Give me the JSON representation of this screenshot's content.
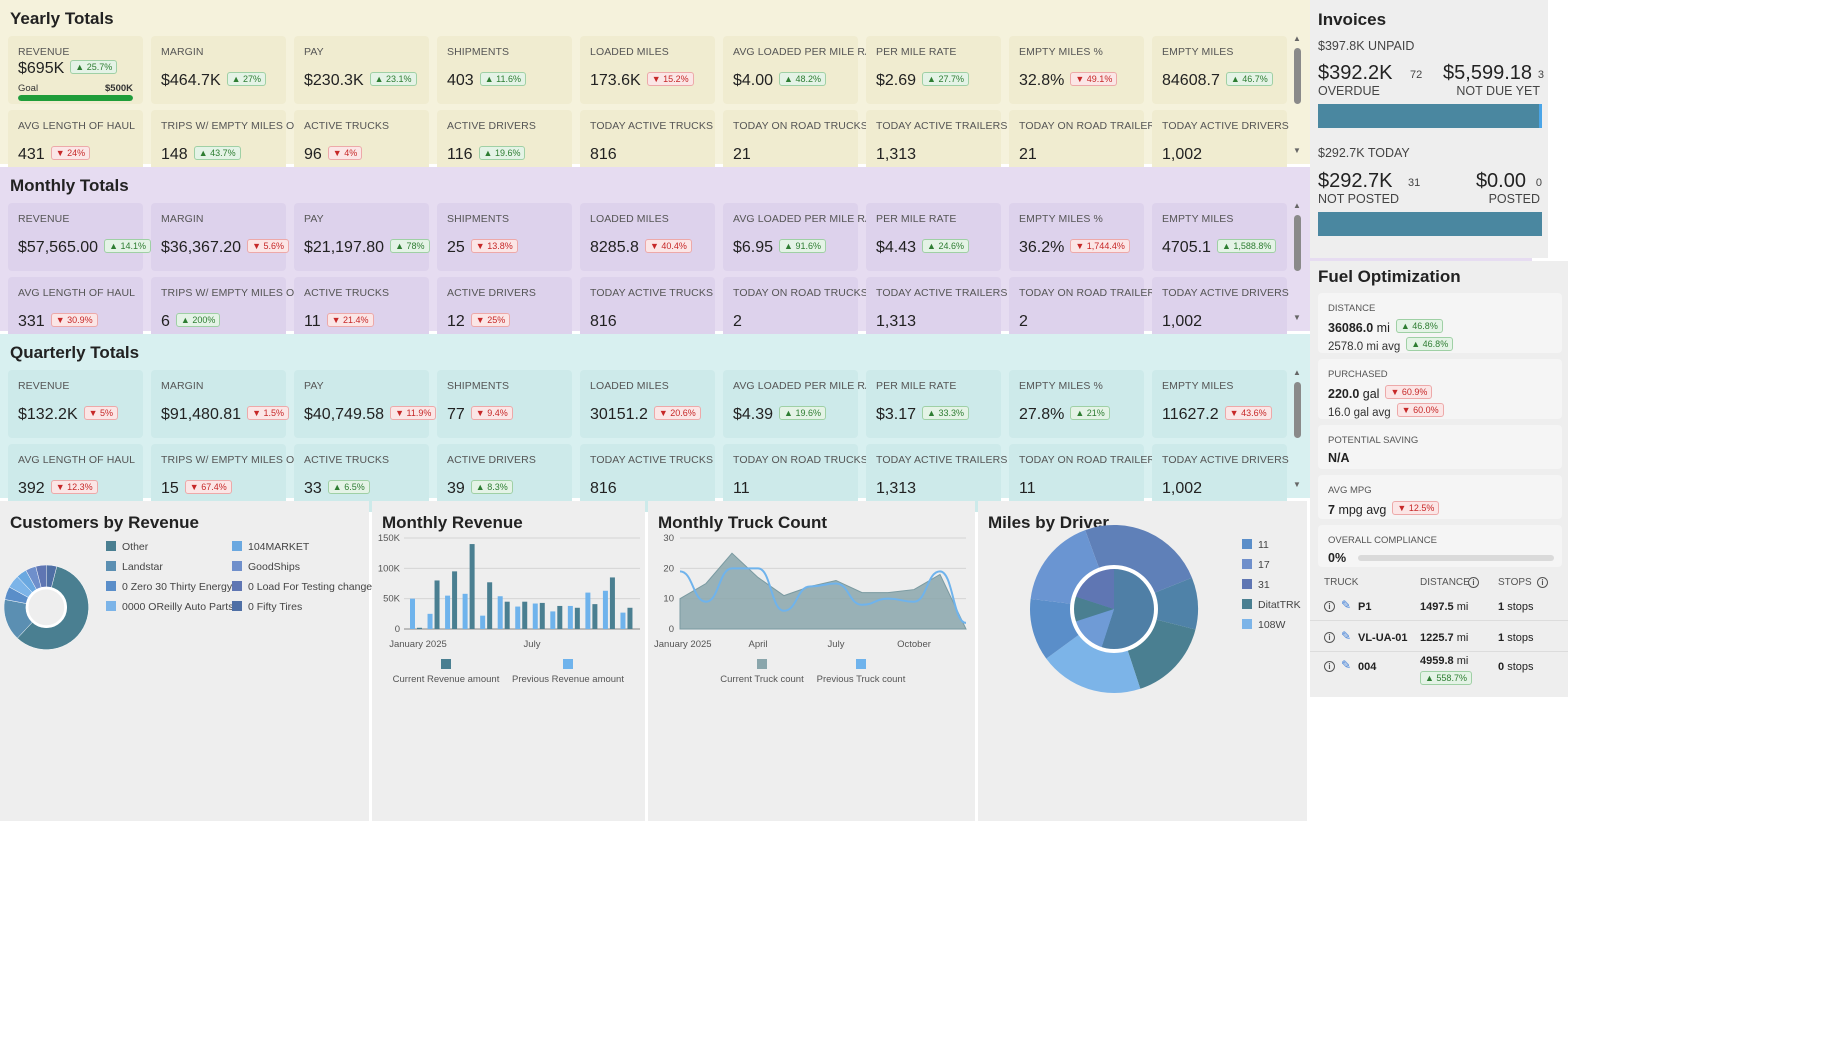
{
  "yearly": {
    "title": "Yearly Totals",
    "bg": "#f5f2dc",
    "card_bg": "#f0ecd0",
    "row1": [
      {
        "label": "REVENUE",
        "value": "$695K",
        "badge": "25.7%",
        "dir": "up"
      },
      {
        "label": "MARGIN",
        "value": "$464.7K",
        "badge": "27%",
        "dir": "up"
      },
      {
        "label": "PAY",
        "value": "$230.3K",
        "badge": "23.1%",
        "dir": "up"
      },
      {
        "label": "SHIPMENTS",
        "value": "403",
        "badge": "11.6%",
        "dir": "up"
      },
      {
        "label": "LOADED MILES",
        "value": "173.6K",
        "badge": "15.2%",
        "dir": "down"
      },
      {
        "label": "AVG LOADED PER MILE RATE",
        "value": "$4.00",
        "badge": "48.2%",
        "dir": "up"
      },
      {
        "label": "PER MILE RATE",
        "value": "$2.69",
        "badge": "27.7%",
        "dir": "up"
      },
      {
        "label": "EMPTY MILES %",
        "value": "32.8%",
        "badge": "49.1%",
        "dir": "down"
      },
      {
        "label": "EMPTY MILES",
        "value": "84608.7",
        "badge": "46.7%",
        "dir": "up"
      }
    ],
    "goal": {
      "label": "Goal",
      "amount": "$500K",
      "progress": 1.0
    },
    "row2": [
      {
        "label": "AVG LENGTH OF HAUL",
        "value": "431",
        "badge": "24%",
        "dir": "down"
      },
      {
        "label": "TRIPS W/ EMPTY MILES OVER",
        "value": "148",
        "badge": "43.7%",
        "dir": "up"
      },
      {
        "label": "ACTIVE TRUCKS",
        "value": "96",
        "badge": "4%",
        "dir": "down"
      },
      {
        "label": "ACTIVE DRIVERS",
        "value": "116",
        "badge": "19.6%",
        "dir": "up"
      },
      {
        "label": "TODAY ACTIVE TRUCKS",
        "value": "816",
        "badge": "",
        "dir": ""
      },
      {
        "label": "TODAY ON ROAD TRUCKS",
        "value": "21",
        "badge": "",
        "dir": ""
      },
      {
        "label": "TODAY ACTIVE TRAILERS",
        "value": "1,313",
        "badge": "",
        "dir": ""
      },
      {
        "label": "TODAY ON ROAD TRAILERS",
        "value": "21",
        "badge": "",
        "dir": ""
      },
      {
        "label": "TODAY ACTIVE DRIVERS",
        "value": "1,002",
        "badge": "",
        "dir": ""
      }
    ]
  },
  "monthly": {
    "title": "Monthly Totals",
    "bg": "#e6dcf1",
    "card_bg": "#ddd2ec",
    "row1": [
      {
        "label": "REVENUE",
        "value": "$57,565.00",
        "badge": "14.1%",
        "dir": "up"
      },
      {
        "label": "MARGIN",
        "value": "$36,367.20",
        "badge": "5.6%",
        "dir": "down"
      },
      {
        "label": "PAY",
        "value": "$21,197.80",
        "badge": "78%",
        "dir": "up"
      },
      {
        "label": "SHIPMENTS",
        "value": "25",
        "badge": "13.8%",
        "dir": "down"
      },
      {
        "label": "LOADED MILES",
        "value": "8285.8",
        "badge": "40.4%",
        "dir": "down"
      },
      {
        "label": "AVG LOADED PER MILE RATE",
        "value": "$6.95",
        "badge": "91.6%",
        "dir": "up"
      },
      {
        "label": "PER MILE RATE",
        "value": "$4.43",
        "badge": "24.6%",
        "dir": "up"
      },
      {
        "label": "EMPTY MILES %",
        "value": "36.2%",
        "badge": "1,744.4%",
        "dir": "down"
      },
      {
        "label": "EMPTY MILES",
        "value": "4705.1",
        "badge": "1,588.8%",
        "dir": "up"
      }
    ],
    "row2": [
      {
        "label": "AVG LENGTH OF HAUL",
        "value": "331",
        "badge": "30.9%",
        "dir": "down"
      },
      {
        "label": "TRIPS W/ EMPTY MILES OVER",
        "value": "6",
        "badge": "200%",
        "dir": "up"
      },
      {
        "label": "ACTIVE TRUCKS",
        "value": "11",
        "badge": "21.4%",
        "dir": "down"
      },
      {
        "label": "ACTIVE DRIVERS",
        "value": "12",
        "badge": "25%",
        "dir": "down"
      },
      {
        "label": "TODAY ACTIVE TRUCKS",
        "value": "816",
        "badge": "",
        "dir": ""
      },
      {
        "label": "TODAY ON ROAD TRUCKS",
        "value": "2",
        "badge": "",
        "dir": ""
      },
      {
        "label": "TODAY ACTIVE TRAILERS",
        "value": "1,313",
        "badge": "",
        "dir": ""
      },
      {
        "label": "TODAY ON ROAD TRAILERS",
        "value": "2",
        "badge": "",
        "dir": ""
      },
      {
        "label": "TODAY ACTIVE DRIVERS",
        "value": "1,002",
        "badge": "",
        "dir": ""
      }
    ]
  },
  "quarterly": {
    "title": "Quarterly Totals",
    "bg": "#d8f0f0",
    "card_bg": "#cdeaea",
    "row1": [
      {
        "label": "REVENUE",
        "value": "$132.2K",
        "badge": "5%",
        "dir": "down"
      },
      {
        "label": "MARGIN",
        "value": "$91,480.81",
        "badge": "1.5%",
        "dir": "down"
      },
      {
        "label": "PAY",
        "value": "$40,749.58",
        "badge": "11.9%",
        "dir": "down"
      },
      {
        "label": "SHIPMENTS",
        "value": "77",
        "badge": "9.4%",
        "dir": "down"
      },
      {
        "label": "LOADED MILES",
        "value": "30151.2",
        "badge": "20.6%",
        "dir": "down"
      },
      {
        "label": "AVG LOADED PER MILE RATE",
        "value": "$4.39",
        "badge": "19.6%",
        "dir": "up"
      },
      {
        "label": "PER MILE RATE",
        "value": "$3.17",
        "badge": "33.3%",
        "dir": "up"
      },
      {
        "label": "EMPTY MILES %",
        "value": "27.8%",
        "badge": "21%",
        "dir": "up"
      },
      {
        "label": "EMPTY MILES",
        "value": "11627.2",
        "badge": "43.6%",
        "dir": "down"
      }
    ],
    "row2": [
      {
        "label": "AVG LENGTH OF HAUL",
        "value": "392",
        "badge": "12.3%",
        "dir": "down"
      },
      {
        "label": "TRIPS W/ EMPTY MILES OVER",
        "value": "15",
        "badge": "67.4%",
        "dir": "down"
      },
      {
        "label": "ACTIVE TRUCKS",
        "value": "33",
        "badge": "6.5%",
        "dir": "up"
      },
      {
        "label": "ACTIVE DRIVERS",
        "value": "39",
        "badge": "8.3%",
        "dir": "up"
      },
      {
        "label": "TODAY ACTIVE TRUCKS",
        "value": "816",
        "badge": "",
        "dir": ""
      },
      {
        "label": "TODAY ON ROAD TRUCKS",
        "value": "11",
        "badge": "",
        "dir": ""
      },
      {
        "label": "TODAY ACTIVE TRAILERS",
        "value": "1,313",
        "badge": "",
        "dir": ""
      },
      {
        "label": "TODAY ON ROAD TRAILERS",
        "value": "11",
        "badge": "",
        "dir": ""
      },
      {
        "label": "TODAY ACTIVE DRIVERS",
        "value": "1,002",
        "badge": "",
        "dir": ""
      }
    ]
  },
  "invoices": {
    "title": "Invoices",
    "unpaid": "$397.8K UNPAID",
    "overdue_amount": "$392.2K",
    "overdue_count": "72",
    "overdue_label": "OVERDUE",
    "notdue_amount": "$5,599.18",
    "notdue_count": "3",
    "notdue_label": "NOT DUE YET",
    "overdue_fraction": 0.986,
    "today": "$292.7K TODAY",
    "notposted_amount": "$292.7K",
    "notposted_count": "31",
    "notposted_label": "NOT POSTED",
    "posted_amount": "$0.00",
    "posted_count": "0",
    "posted_label": "POSTED",
    "notposted_fraction": 1.0,
    "bar_color": "#4a87a0",
    "bar_accent": "#4aa5e8"
  },
  "fuel": {
    "title": "Fuel Optimization",
    "distance": {
      "label": "DISTANCE",
      "value": "36086.0",
      "unit": "mi",
      "badge": "46.8%",
      "dir": "up",
      "avg": "2578.0 mi avg",
      "avg_badge": "46.8%",
      "avg_dir": "up"
    },
    "purchased": {
      "label": "PURCHASED",
      "value": "220.0",
      "unit": "gal",
      "badge": "60.9%",
      "dir": "down",
      "avg": "16.0 gal avg",
      "avg_badge": "60.0%",
      "avg_dir": "down"
    },
    "saving": {
      "label": "POTENTIAL SAVING",
      "value": "N/A"
    },
    "mpg": {
      "label": "AVG MPG",
      "value": "7",
      "unit": "mpg avg",
      "badge": "12.5%",
      "dir": "down"
    },
    "compliance": {
      "label": "OVERALL COMPLIANCE",
      "value": "0%",
      "progress": 0.0
    },
    "table": {
      "headers": [
        "TRUCK",
        "DISTANCE",
        "STOPS"
      ],
      "rows": [
        {
          "truck": "P1",
          "distance": "1497.5",
          "unit": "mi",
          "stops": "1",
          "stops_label": "stops",
          "badge": ""
        },
        {
          "truck": "VL-UA-01",
          "distance": "1225.7",
          "unit": "mi",
          "stops": "1",
          "stops_label": "stops",
          "badge": ""
        },
        {
          "truck": "004",
          "distance": "4959.8",
          "unit": "mi",
          "stops": "0",
          "stops_label": "stops",
          "badge": "558.7%"
        }
      ]
    }
  },
  "customers": {
    "title": "Customers by Revenue",
    "legend": [
      {
        "name": "Other",
        "color": "#4a7f91"
      },
      {
        "name": "Landstar",
        "color": "#5b8fb2"
      },
      {
        "name": "0 Zero 30 Thirty Energy",
        "color": "#5a8ec9"
      },
      {
        "name": "0000 OReilly Auto Parts",
        "color": "#7cb4e8"
      },
      {
        "name": "104MARKET",
        "color": "#6aa8e0"
      },
      {
        "name": "GoodShips",
        "color": "#6f8fcb"
      },
      {
        "name": "0 Load For Testing change",
        "color": "#5f76b3"
      },
      {
        "name": "0 Fifty Tires",
        "color": "#4f6fa5"
      }
    ]
  },
  "chart_data": [
    {
      "type": "bar",
      "title": "Monthly Revenue",
      "categories": [
        "Jan 2025",
        "",
        "",
        "",
        "",
        "",
        "Jul",
        "",
        "",
        "",
        "",
        "",
        ""
      ],
      "x_ticks": [
        "January 2025",
        "July"
      ],
      "y_ticks": [
        "0",
        "50K",
        "100K",
        "150K"
      ],
      "ylim": [
        0,
        150000
      ],
      "series": [
        {
          "name": "Current Revenue amount",
          "color": "#4a7f91",
          "values": [
            2000,
            80000,
            95000,
            140000,
            77000,
            45000,
            45000,
            43000,
            38000,
            35000,
            41000,
            85000,
            35000
          ]
        },
        {
          "name": "Previous Revenue amount",
          "color": "#6fb3ec",
          "values": [
            50000,
            25000,
            55000,
            58000,
            22000,
            54000,
            37000,
            42000,
            29000,
            38000,
            60000,
            63000,
            27000
          ]
        }
      ]
    },
    {
      "type": "area",
      "title": "Monthly Truck Count",
      "x_ticks": [
        "January 2025",
        "April",
        "July",
        "October"
      ],
      "y_ticks": [
        "0",
        "10",
        "20",
        "30"
      ],
      "ylim": [
        0,
        30
      ],
      "series": [
        {
          "name": "Current Truck count",
          "color": "#8aa6ac",
          "values": [
            10,
            15,
            25,
            17,
            11,
            14,
            16,
            12,
            12,
            13,
            18,
            0
          ]
        },
        {
          "name": "Previous Truck count",
          "color": "#6fb3ec",
          "values": [
            19,
            9,
            20,
            20,
            6,
            14,
            15,
            8,
            10,
            9,
            19,
            2
          ]
        }
      ]
    },
    {
      "type": "pie",
      "title": "Miles by Driver",
      "legend": [
        {
          "name": "11",
          "color": "#5a8ec9"
        },
        {
          "name": "17",
          "color": "#6f8fcb"
        },
        {
          "name": "31",
          "color": "#5f76b3"
        },
        {
          "name": "DitatTRK",
          "color": "#4a7f91"
        },
        {
          "name": "108W",
          "color": "#7cb4e8"
        }
      ]
    }
  ]
}
